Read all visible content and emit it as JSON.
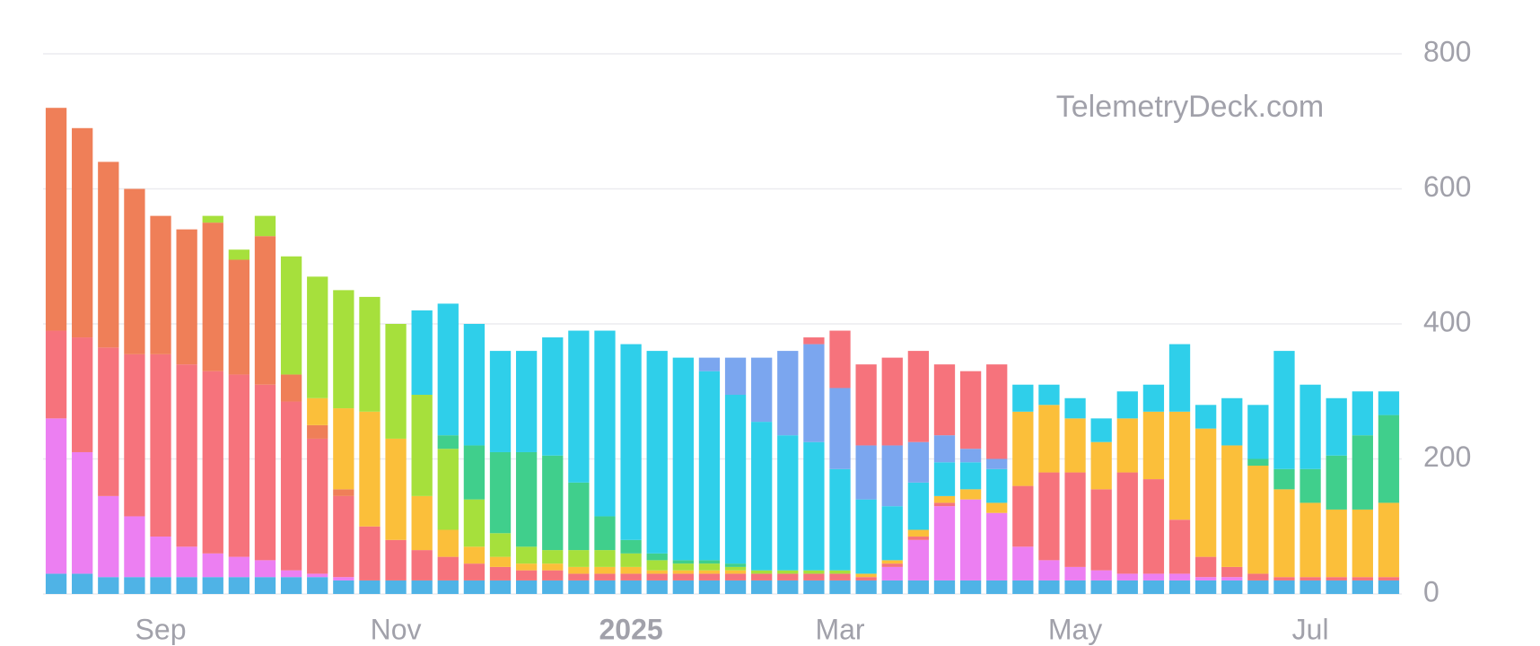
{
  "chart_data": {
    "type": "stacked_bar",
    "watermark": "TelemetryDeck.com",
    "categories": [
      null,
      null,
      null,
      null,
      "Sep",
      null,
      null,
      null,
      null,
      null,
      null,
      null,
      null,
      "Nov",
      null,
      null,
      null,
      null,
      null,
      null,
      null,
      null,
      "2025",
      null,
      null,
      null,
      null,
      null,
      null,
      null,
      "Mar",
      null,
      null,
      null,
      null,
      null,
      null,
      null,
      null,
      "May",
      null,
      null,
      null,
      null,
      null,
      null,
      null,
      null,
      "Jul",
      null,
      null,
      null
    ],
    "series": [
      {
        "color": "#4fb3e6",
        "values": [
          30,
          30,
          25,
          25,
          25,
          25,
          25,
          25,
          25,
          25,
          25,
          20,
          20,
          20,
          20,
          20,
          20,
          20,
          20,
          20,
          20,
          20,
          20,
          20,
          20,
          20,
          20,
          20,
          20,
          20,
          20,
          20,
          20,
          20,
          20,
          20,
          20,
          20,
          20,
          20,
          20,
          20,
          20,
          20,
          20,
          20,
          20,
          20,
          20,
          20,
          20,
          20
        ]
      },
      {
        "color": "#ec7ff2",
        "values": [
          230,
          180,
          120,
          90,
          60,
          45,
          35,
          30,
          25,
          10,
          5,
          5,
          0,
          0,
          0,
          0,
          0,
          0,
          0,
          0,
          0,
          0,
          0,
          0,
          0,
          0,
          0,
          0,
          0,
          0,
          0,
          0,
          20,
          60,
          110,
          120,
          100,
          50,
          30,
          20,
          15,
          10,
          10,
          10,
          5,
          5,
          0,
          0,
          0,
          0,
          0,
          0
        ]
      },
      {
        "color": "#f6737c",
        "values": [
          130,
          170,
          220,
          240,
          270,
          270,
          270,
          270,
          260,
          250,
          200,
          120,
          80,
          60,
          45,
          35,
          25,
          20,
          15,
          15,
          10,
          10,
          10,
          10,
          10,
          10,
          10,
          10,
          10,
          10,
          10,
          5,
          5,
          5,
          5,
          0,
          0,
          90,
          130,
          140,
          120,
          150,
          140,
          80,
          30,
          15,
          10,
          5,
          5,
          5,
          5,
          5
        ]
      },
      {
        "color": "#ef7f58",
        "values": [
          330,
          310,
          275,
          245,
          205,
          200,
          220,
          170,
          220,
          40,
          20,
          10,
          0,
          0,
          0,
          0,
          0,
          0,
          0,
          0,
          0,
          0,
          0,
          0,
          0,
          0,
          0,
          0,
          0,
          0,
          0,
          0,
          0,
          0,
          0,
          0,
          0,
          0,
          0,
          0,
          0,
          0,
          0,
          0,
          0,
          0,
          0,
          0,
          0,
          0,
          0,
          0
        ]
      },
      {
        "color": "#fbbf3a",
        "values": [
          0,
          0,
          0,
          0,
          0,
          0,
          0,
          0,
          0,
          0,
          40,
          120,
          170,
          150,
          80,
          40,
          25,
          15,
          10,
          10,
          10,
          10,
          10,
          5,
          5,
          5,
          5,
          0,
          0,
          0,
          0,
          5,
          5,
          10,
          10,
          15,
          15,
          110,
          100,
          80,
          70,
          80,
          100,
          160,
          190,
          180,
          160,
          130,
          110,
          100,
          100,
          110
        ]
      },
      {
        "color": "#a6e03c",
        "values": [
          0,
          0,
          0,
          0,
          0,
          0,
          10,
          15,
          30,
          175,
          180,
          175,
          170,
          170,
          150,
          120,
          70,
          35,
          25,
          20,
          25,
          25,
          20,
          15,
          10,
          10,
          5,
          5,
          5,
          5,
          5,
          0,
          0,
          0,
          0,
          0,
          0,
          0,
          0,
          0,
          0,
          0,
          0,
          0,
          0,
          0,
          0,
          0,
          0,
          0,
          0,
          0
        ]
      },
      {
        "color": "#40cf8c",
        "values": [
          0,
          0,
          0,
          0,
          0,
          0,
          0,
          0,
          0,
          0,
          0,
          0,
          0,
          0,
          0,
          20,
          80,
          120,
          140,
          140,
          100,
          50,
          20,
          10,
          5,
          5,
          5,
          0,
          0,
          0,
          0,
          0,
          0,
          0,
          0,
          0,
          0,
          0,
          0,
          0,
          0,
          0,
          0,
          0,
          0,
          0,
          10,
          30,
          50,
          80,
          110,
          130
        ]
      },
      {
        "color": "#2fcfea",
        "values": [
          0,
          0,
          0,
          0,
          0,
          0,
          0,
          0,
          0,
          0,
          0,
          0,
          0,
          0,
          125,
          195,
          180,
          150,
          150,
          175,
          225,
          275,
          290,
          300,
          300,
          280,
          250,
          220,
          200,
          190,
          150,
          110,
          80,
          70,
          50,
          40,
          50,
          40,
          30,
          30,
          35,
          40,
          40,
          100,
          35,
          70,
          80,
          175,
          125,
          85,
          65,
          35
        ]
      },
      {
        "color": "#7ba6ef",
        "values": [
          0,
          0,
          0,
          0,
          0,
          0,
          0,
          0,
          0,
          0,
          0,
          0,
          0,
          0,
          0,
          0,
          0,
          0,
          0,
          0,
          0,
          0,
          0,
          0,
          0,
          20,
          55,
          95,
          125,
          145,
          120,
          80,
          90,
          60,
          40,
          20,
          15,
          0,
          0,
          0,
          0,
          0,
          0,
          0,
          0,
          0,
          0,
          0,
          0,
          0,
          0,
          0
        ]
      },
      {
        "color": "#f6737c",
        "values": [
          0,
          0,
          0,
          0,
          0,
          0,
          0,
          0,
          0,
          0,
          0,
          0,
          0,
          0,
          0,
          0,
          0,
          0,
          0,
          0,
          0,
          0,
          0,
          0,
          0,
          0,
          0,
          0,
          0,
          10,
          85,
          120,
          130,
          135,
          105,
          115,
          140,
          0,
          0,
          0,
          0,
          0,
          0,
          0,
          0,
          0,
          0,
          0,
          0,
          0,
          0,
          0
        ]
      }
    ],
    "ylim": [
      0,
      800
    ],
    "yticks": [
      0,
      200,
      400,
      600,
      800
    ],
    "grid": true
  }
}
